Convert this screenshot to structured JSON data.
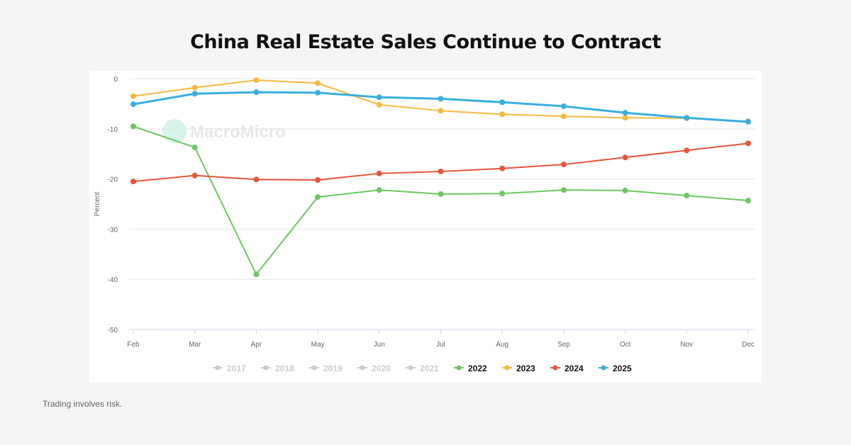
{
  "title": "China Real Estate Sales Continue to Contract",
  "footer": "Trading involves risk.",
  "watermark": "MacroMicro",
  "chart_data": {
    "type": "line",
    "title": "China Real Estate Sales Continue to Contract",
    "ylabel": "Percent",
    "xlabel": "",
    "categories": [
      "Feb",
      "Mar",
      "Apr",
      "May",
      "Jun",
      "Jul",
      "Aug",
      "Sep",
      "Oct",
      "Nov",
      "Dec"
    ],
    "ylim": [
      -50,
      0
    ],
    "yticks": [
      0,
      -10,
      -20,
      -30,
      -40,
      -50
    ],
    "grid": true,
    "legend": "bottom",
    "legend_entries": [
      {
        "name": "2017",
        "color": "#cccccc",
        "active": false
      },
      {
        "name": "2018",
        "color": "#cccccc",
        "active": false
      },
      {
        "name": "2019",
        "color": "#cccccc",
        "active": false
      },
      {
        "name": "2020",
        "color": "#cccccc",
        "active": false
      },
      {
        "name": "2021",
        "color": "#cccccc",
        "active": false
      },
      {
        "name": "2022",
        "color": "#6cc860",
        "active": true
      },
      {
        "name": "2023",
        "color": "#f5b93e",
        "active": true
      },
      {
        "name": "2024",
        "color": "#e8553c",
        "active": true
      },
      {
        "name": "2025",
        "color": "#3aaee0",
        "active": true
      }
    ],
    "series": [
      {
        "name": "2022",
        "color": "#6cc860",
        "values": [
          -9.5,
          -13.7,
          -39.0,
          -23.6,
          -22.2,
          -23.0,
          -22.9,
          -22.2,
          -22.3,
          -23.3,
          -24.3
        ]
      },
      {
        "name": "2023",
        "color": "#f5b93e",
        "values": [
          -3.5,
          -1.8,
          -0.3,
          -0.9,
          -5.2,
          -6.4,
          -7.1,
          -7.5,
          -7.8,
          -7.9,
          -8.5
        ]
      },
      {
        "name": "2024",
        "color": "#e8553c",
        "values": [
          -20.5,
          -19.3,
          -20.1,
          -20.2,
          -18.9,
          -18.5,
          -17.9,
          -17.1,
          -15.7,
          -14.3,
          -12.9
        ]
      },
      {
        "name": "2025",
        "color": "#3aaee0",
        "values": [
          -5.1,
          -3.0,
          -2.7,
          -2.8,
          -3.7,
          -4.0,
          -4.7,
          -5.5,
          -6.8,
          -7.8,
          -8.6
        ]
      }
    ]
  }
}
